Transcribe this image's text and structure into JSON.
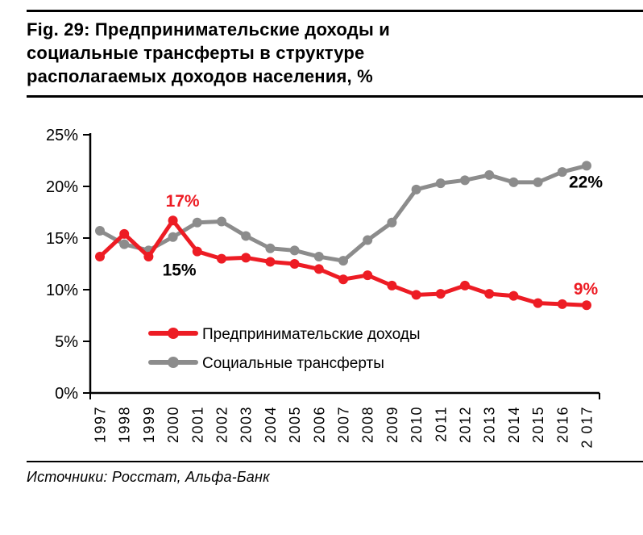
{
  "header": {
    "title_lines": [
      "Fig. 29: Предпринимательские доходы и",
      "социальные трансферты в структуре",
      "располагаемых доходов населения, %"
    ]
  },
  "footer": {
    "source": "Источники: Росстат, Альфа-Банк"
  },
  "colors": {
    "entrepreneurial": "#ed1c24",
    "social": "#8c8c8c",
    "axis": "#000000"
  },
  "chart_data": {
    "type": "line",
    "title": "",
    "xlabel": "",
    "ylabel": "",
    "ylim": [
      0,
      25
    ],
    "grid": false,
    "legend_position": "inside-bottom-left",
    "y_ticks": [
      0,
      5,
      10,
      15,
      20,
      25
    ],
    "y_tick_labels": [
      "0%",
      "5%",
      "10%",
      "15%",
      "20%",
      "25%"
    ],
    "categories": [
      "1997",
      "1998",
      "1999",
      "2000",
      "2001",
      "2002",
      "2003",
      "2004",
      "2005",
      "2006",
      "2007",
      "2008",
      "2009",
      "2010",
      "2011",
      "2012",
      "2013",
      "2014",
      "2015",
      "2016",
      "2 017"
    ],
    "series": [
      {
        "id": "entrepreneurial-income",
        "name": "Предпринимательские доходы",
        "color": "#ed1c24",
        "values": [
          13.2,
          15.4,
          13.2,
          16.7,
          13.7,
          13.0,
          13.1,
          12.7,
          12.5,
          12.0,
          11.0,
          11.4,
          10.4,
          9.5,
          9.6,
          10.4,
          9.6,
          9.4,
          8.7,
          8.6,
          8.5
        ]
      },
      {
        "id": "social-transfers",
        "name": "Социальные трансферты",
        "color": "#8c8c8c",
        "values": [
          15.7,
          14.4,
          13.8,
          15.1,
          16.5,
          16.6,
          15.2,
          14.0,
          13.8,
          13.2,
          12.8,
          14.8,
          16.5,
          19.7,
          20.3,
          20.6,
          21.1,
          20.4,
          20.4,
          21.4,
          22.0
        ]
      }
    ],
    "annotations": [
      {
        "label": "17%",
        "color": "#ed1c24",
        "x_index": 3,
        "value": 18.05,
        "dx": 12
      },
      {
        "label": "15%",
        "color": "#000000",
        "x_index": 3,
        "value": 11.35,
        "dx": 8
      },
      {
        "label": "22%",
        "color": "#000000",
        "x_index": 20,
        "value": 19.9,
        "dx": -1
      },
      {
        "label": "9%",
        "color": "#ed1c24",
        "x_index": 20,
        "value": 9.55,
        "dx": -1
      }
    ]
  }
}
